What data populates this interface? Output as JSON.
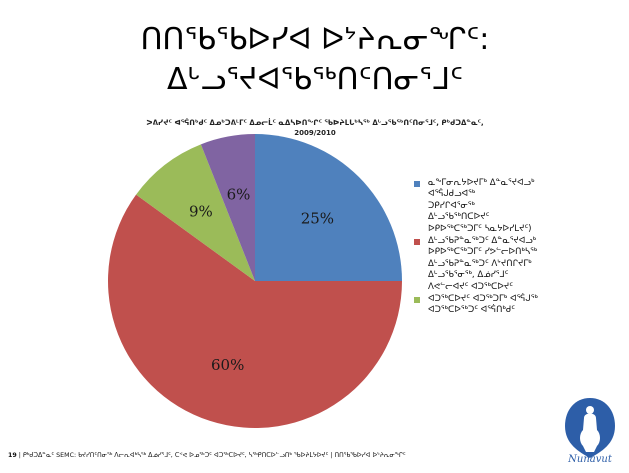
{
  "slide": {
    "title_line1": "ᑎᑎᕐᑲᖃᐅᓯᐊ ᐅᔾᔨᕆᓂᖏᑦ:",
    "title_line2": "ᐃᒡᓗᕐᔪᐊᖃᖅᑎᑦᑎᓂᕐᒧᑦ",
    "subtitle_line1": "ᐳᕕᓯᔪᑦ ᐊᕐᕌᑎᒃᑯᑦ ᐃᓄᒃᑐᕕᒻᒥᑦ ᐃᓄᓕᒫᑦ ᓇᐃᓴᐅᑎᖏᑦ ᖃᐅᔨᒪᒐᒃᓴᖅ ᐃᒡᓗᖃᖅᑎᑦᑎᓂᕐᒧᑦ, ᑭᒃᑯᑐᐃᓐᓇᑦ,",
    "subtitle_line2": "2009/2010",
    "footer_number": "19",
    "footer_text": "ᑭᒃᑯᑐᐃᓐᓇᑦ SEMC: ᑲᔪᓯᑎᑦᑎᓂᖅ ᐱᓕᕆᐊᒃᓴᖅ ᐃᓅᓯᕐᒧᑦ, ᑕᕝᕙ ᐅᓄᖅᑐᑦ ᐊᑐᖅᑕᐅᔪᑦ, ᓴᖅᑭᑎᑕᐅᓪᓗᑎᒃ ᖃᐅᔨᒪᔭᐅᔪᑦ | ᑎᑎᕐᑲᖃᐅᓯᐊ ᐅᔾᔨᕆᓂᖏᑦ",
    "logo_text": "Nunavut",
    "logo_syllabics": "ᓄᓇᕗᑦ"
  },
  "chart_data": {
    "type": "pie",
    "title": "",
    "start_angle_deg": 90,
    "direction": "clockwise",
    "slices": [
      {
        "label_lines": [
          "ᓇᖕᒥᓂᕆᔭᐅᔪᒥᒃ ᐃᓐᓇᕐᔪᐊᓗᒃ",
          "ᐊᕐᕌᒍᑯᓗᐊᖅ",
          "ᑐᑭᓯᒋᐊᕐᓂᖅ",
          "ᐃᒡᓗᖃᖅᑎᑕᐅᔪᑦ",
          "ᐅᑭᐅᖅᑕᖅᑐᒥᑦ ᓴᓇᔭᐅᓯᒪᔪᑦ)"
        ],
        "value": 25,
        "data_label": "25%",
        "color": "#4f81bd"
      },
      {
        "label_lines": [
          "ᐃᒡᓗᖃᕈᓐᓇᖅᑐᑦ ᐃᓐᓇᕐᔪᐊᓗᒃ",
          "ᐅᑭᐅᖅᑕᖅᑐᒥᑦ ᓯᕗᓪᓕᐅᑎᒃᓴᖅ",
          "ᐃᒡᓗᖃᕈᓐᓇᖅᑐᑦ ᐱᔾᔪᑎᒋᔪᒥᒃ",
          "ᐃᒡᓗᖃᕐᓂᖅ, ᐃᓅᓯᕐᒧᑦ",
          "ᐱᕙᓪᓕᐊᔪᑦ ᐊᑐᖅᑕᐅᔪᑦ"
        ],
        "value": 60,
        "data_label": "60%",
        "color": "#c0504d"
      },
      {
        "label_lines": [
          "ᐊᑐᖅᑕᐅᔪᑦ ᐊᑐᖅᑐᒥᒃ ᐊᕐᕌᒍᖅ",
          "ᐊᑐᖅᑕᐅᖅᑐᑦ ᐊᕐᕌᑎᒃᑯᑦ"
        ],
        "value": 9,
        "data_label": "9%",
        "color": "#9bbb59"
      },
      {
        "label_lines": [],
        "value": 6,
        "data_label": "6%",
        "color": "#8064a2"
      }
    ]
  }
}
